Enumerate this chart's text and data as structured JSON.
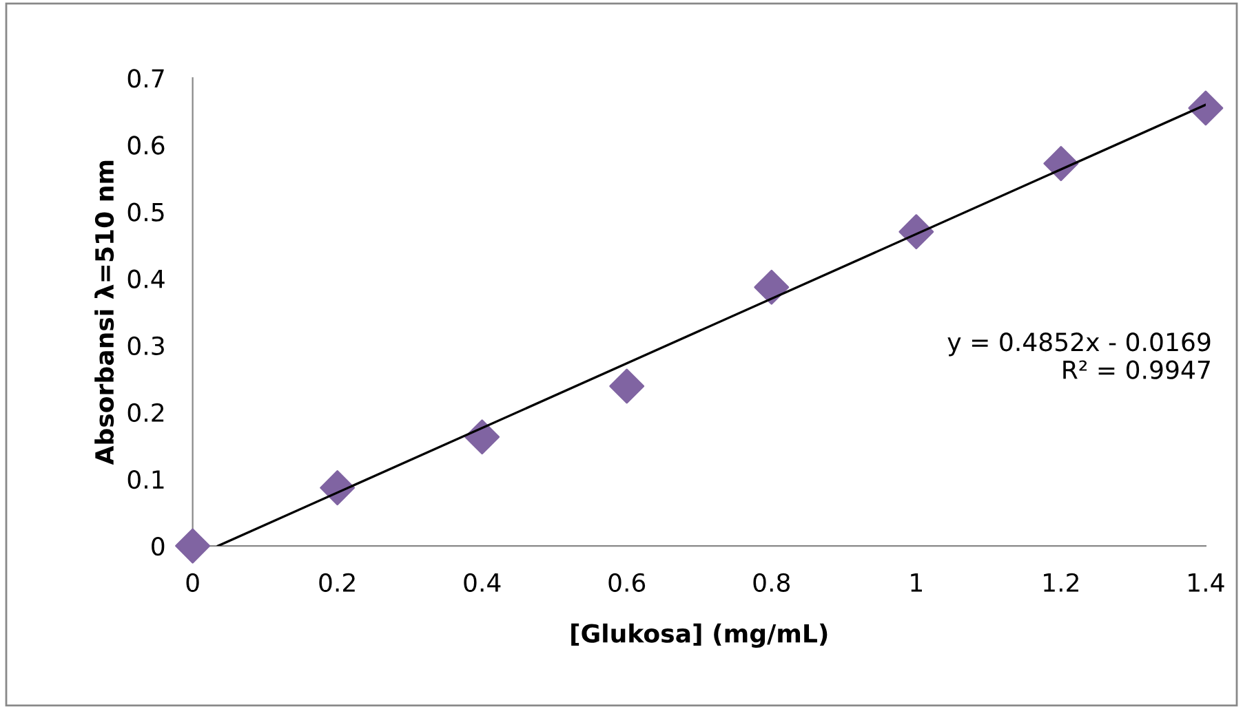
{
  "chart_data": {
    "type": "scatter",
    "xlabel": "[Glukosa] (mg/mL)",
    "ylabel": "Absorbansi λ=510 nm",
    "x": [
      0,
      0.2,
      0.4,
      0.6,
      0.8,
      1.0,
      1.2,
      1.4
    ],
    "series": [
      {
        "color": "#8064a2",
        "marker": "diamond",
        "values": [
          0,
          0.087,
          0.163,
          0.239,
          0.387,
          0.47,
          0.572,
          0.655
        ]
      },
      {
        "type": "line",
        "color": "#000000",
        "marker": "none",
        "line_style": "solid",
        "x": [
          0.035,
          1.4
        ],
        "values": [
          0,
          0.66
        ]
      }
    ],
    "xlim": [
      0,
      1.4
    ],
    "ylim": [
      0,
      0.7
    ],
    "xticks": [
      {
        "value": 0,
        "label": "0"
      },
      0.2,
      0.4,
      0.6,
      0.8,
      {
        "value": 1.0,
        "label": "1"
      },
      1.2,
      1.4
    ],
    "yticks": [
      {
        "value": 0,
        "label": "0"
      },
      0.1,
      0.2,
      0.3,
      0.4,
      0.5,
      0.6,
      0.7
    ],
    "grid": false,
    "legend": false,
    "annotations": [
      "y = 0.4852x - 0.0169\nR² = 0.9947"
    ]
  }
}
